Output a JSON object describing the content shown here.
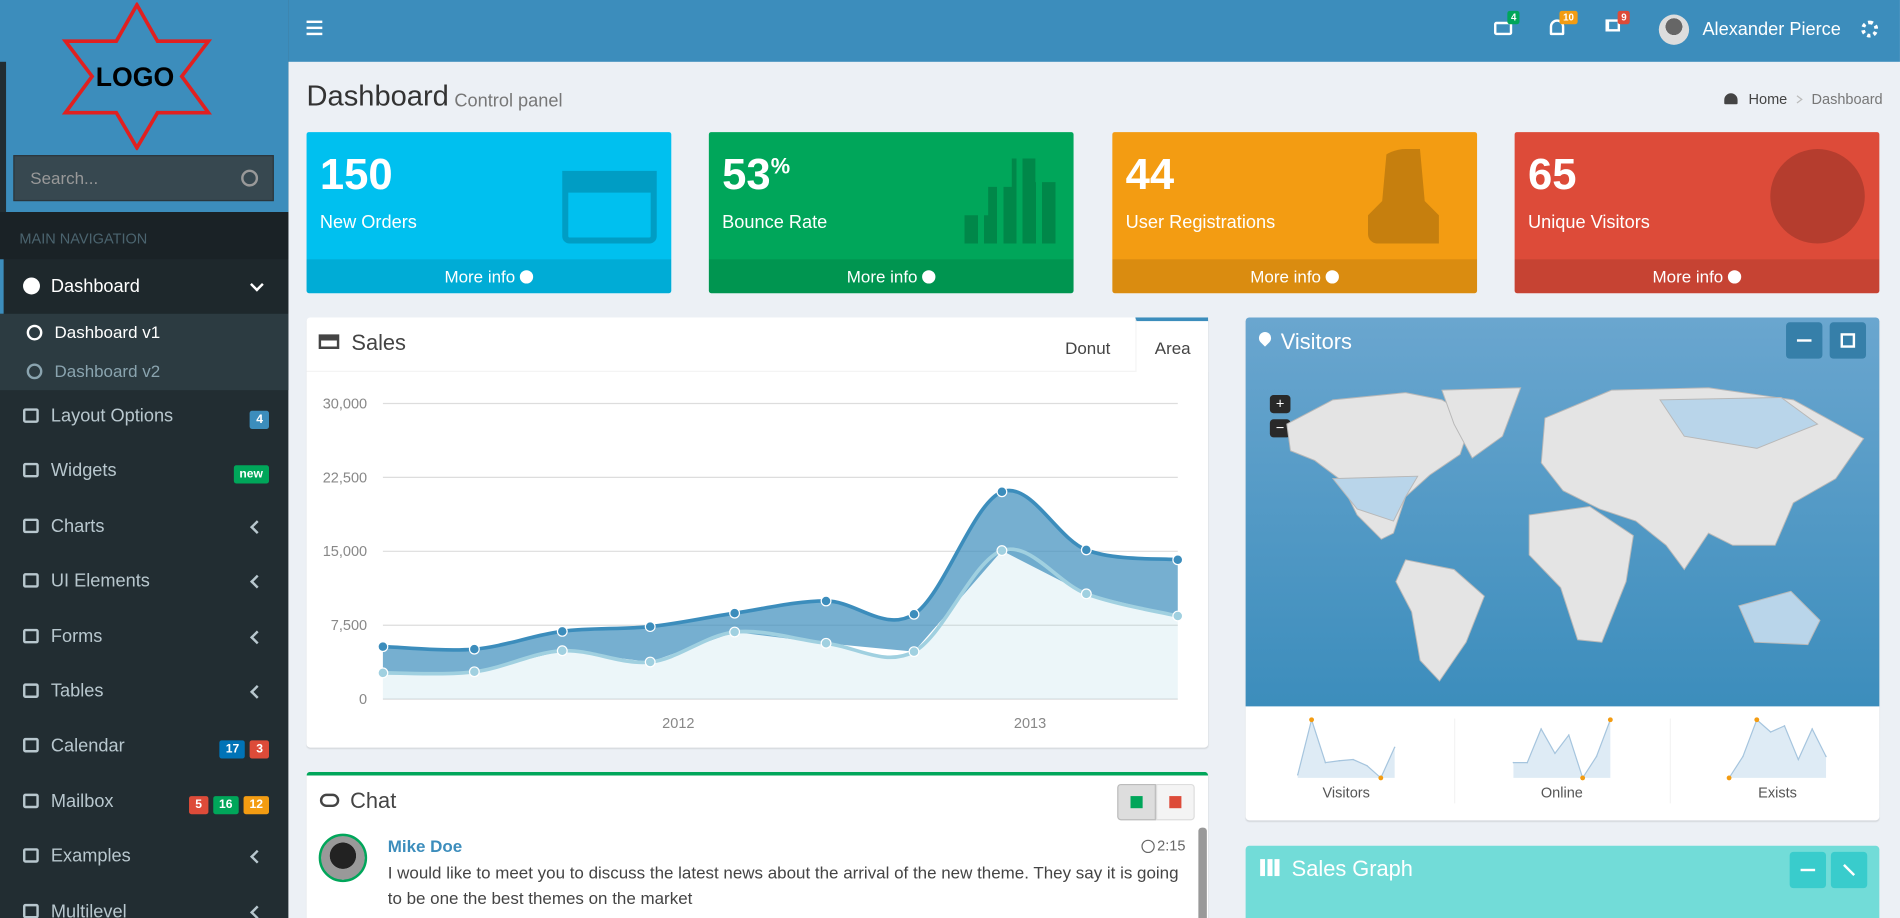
{
  "logo": "LOGO",
  "search_placeholder": "Search...",
  "header": {
    "badges": [
      {
        "text": 4,
        "color": "#00a65a"
      },
      {
        "text": 10,
        "color": "#f39c12"
      },
      {
        "text": 9,
        "color": "#dd4b39"
      }
    ],
    "user": "Alexander Pierce"
  },
  "sidebar": {
    "heading": "MAIN NAVIGATION",
    "active": "Dashboard",
    "submenu": [
      "Dashboard v1",
      "Dashboard v2"
    ],
    "items": [
      {
        "label": "Layout Options",
        "badges": [
          {
            "text": 4,
            "color": "#3c8dbc"
          }
        ]
      },
      {
        "label": "Widgets",
        "badges": [
          {
            "text": "new",
            "color": "#00a65a"
          }
        ]
      },
      {
        "label": "Charts",
        "expandable": true
      },
      {
        "label": "UI Elements",
        "expandable": true
      },
      {
        "label": "Forms",
        "expandable": true
      },
      {
        "label": "Tables",
        "expandable": true
      },
      {
        "label": "Calendar",
        "badges": [
          {
            "text": 17,
            "color": "#0073b7"
          },
          {
            "text": 3,
            "color": "#dd4b39"
          }
        ]
      },
      {
        "label": "Mailbox",
        "badges": [
          {
            "text": 5,
            "color": "#dd4b39"
          },
          {
            "text": 16,
            "color": "#00a65a"
          },
          {
            "text": 12,
            "color": "#f39c12"
          }
        ]
      },
      {
        "label": "Examples",
        "expandable": true
      },
      {
        "label": "Multilevel",
        "expandable": true
      }
    ]
  },
  "content_header": {
    "title": "Dashboard",
    "subtitle": "Control panel",
    "breadcrumb": [
      "Home",
      "Dashboard"
    ]
  },
  "info_boxes": [
    {
      "value": 150,
      "label": "New Orders",
      "link": "More info",
      "color": "#00c0ef"
    },
    {
      "value": 53,
      "unit": "%",
      "label": "Bounce Rate",
      "link": "More info",
      "color": "#00a65a"
    },
    {
      "value": 44,
      "label": "User Registrations",
      "link": "More info",
      "color": "#f39c12"
    },
    {
      "value": 65,
      "label": "Unique Visitors",
      "link": "More info",
      "color": "#dd4b39"
    }
  ],
  "sales_box": {
    "title": "Sales",
    "tabs": [
      "Donut",
      "Area"
    ]
  },
  "visitors_box": {
    "title": "Visitors",
    "zoom": [
      "+",
      "−"
    ]
  },
  "chat_box": {
    "title": "Chat",
    "messages": [
      {
        "name": "Mike Doe",
        "time": "2:15",
        "text": "I would like to meet you to discuss the latest news about the arrival of the new theme. They say it is going to be one the best themes on the market"
      }
    ]
  },
  "sales_graph_box": {
    "title": "Sales Graph"
  },
  "chart_data": [
    {
      "type": "area",
      "stacked": true,
      "x": [
        2011.16,
        2011.42,
        2011.67,
        2011.92,
        2012.16,
        2012.42,
        2012.67,
        2012.92,
        2013.16,
        2013.42
      ],
      "series": [
        {
          "color": "#a0d0e0",
          "values": [
            2666,
            2778,
            4912,
            3767,
            6810,
            5670,
            4820,
            15073,
            10687,
            8432
          ]
        },
        {
          "color": "#3c8dbc",
          "values": [
            2666,
            2294,
            1969,
            3597,
            1914,
            4293,
            3795,
            5967,
            4460,
            5713
          ]
        }
      ],
      "xlim": [
        2011.16,
        2013.42
      ],
      "xticks": [
        2012,
        2013
      ],
      "ylim": [
        0,
        30000
      ],
      "yticks": [
        0,
        {
          "value": 7500,
          "label": "7,500"
        },
        {
          "value": 15000,
          "label": "15,000"
        },
        {
          "value": 22500,
          "label": "22,500"
        },
        {
          "value": 30000,
          "label": "30,000"
        }
      ],
      "grid": true
    },
    {
      "type": "sparkline",
      "title": "Visitors",
      "values": [
        5,
        95,
        25,
        28,
        30,
        20,
        0,
        50
      ],
      "color": "#a6c5de",
      "spot_color": "#f39c12"
    },
    {
      "type": "sparkline",
      "title": "Online",
      "values": [
        25,
        25,
        80,
        40,
        70,
        0,
        35,
        95
      ],
      "color": "#a6c5de",
      "spot_color": "#f39c12"
    },
    {
      "type": "sparkline",
      "title": "Exists",
      "values": [
        0,
        35,
        95,
        75,
        85,
        30,
        80,
        35
      ],
      "color": "#a6c5de",
      "spot_color": "#f39c12"
    }
  ]
}
